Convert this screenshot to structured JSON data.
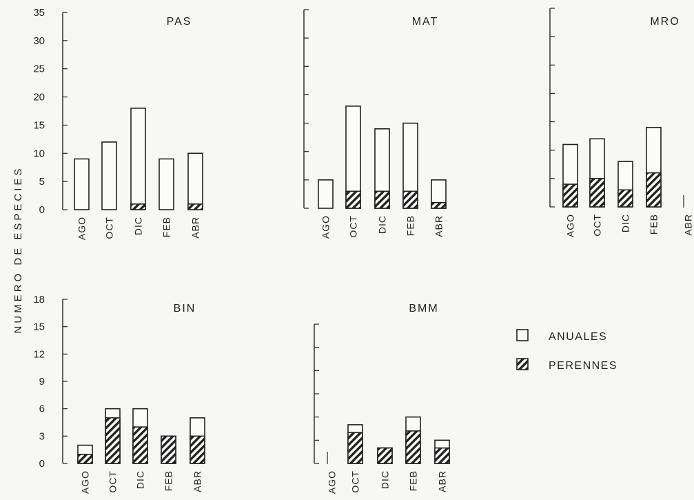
{
  "ylabel": "NUMERO DE ESPECIES",
  "legend": {
    "anuales": "ANUALES",
    "perennes": "PERENNES"
  },
  "chart_data": [
    {
      "type": "bar",
      "stacked": true,
      "title": "PAS",
      "categories": [
        "AGO",
        "OCT",
        "DIC",
        "FEB",
        "ABR"
      ],
      "series": [
        {
          "name": "PERENNES",
          "values": [
            0,
            0,
            1,
            0,
            1
          ]
        },
        {
          "name": "ANUALES",
          "values": [
            9,
            12,
            17,
            9,
            9
          ]
        }
      ],
      "totals": [
        9,
        12,
        18,
        9,
        10
      ],
      "yticks": [
        0,
        5,
        10,
        15,
        20,
        25,
        30,
        35
      ],
      "ylim": [
        0,
        35
      ]
    },
    {
      "type": "bar",
      "stacked": true,
      "title": "MAT",
      "categories": [
        "AGO",
        "OCT",
        "DIC",
        "FEB",
        "ABR"
      ],
      "series": [
        {
          "name": "PERENNES",
          "values": [
            0,
            3,
            3,
            3,
            1
          ]
        },
        {
          "name": "ANUALES",
          "values": [
            5,
            15,
            11,
            12,
            4
          ]
        }
      ],
      "totals": [
        5,
        18,
        14,
        15,
        5
      ],
      "yticks": [],
      "ylim": [
        0,
        35
      ]
    },
    {
      "type": "bar",
      "stacked": true,
      "title": "MRO",
      "categories": [
        "AGO",
        "OCT",
        "DIC",
        "FEB",
        "ABR"
      ],
      "series": [
        {
          "name": "PERENNES",
          "values": [
            4,
            5,
            3,
            6,
            0
          ]
        },
        {
          "name": "ANUALES",
          "values": [
            7,
            7,
            5,
            8,
            0
          ]
        }
      ],
      "totals": [
        11,
        12,
        8,
        14,
        0
      ],
      "yticks": [],
      "ylim": [
        0,
        35
      ]
    },
    {
      "type": "bar",
      "stacked": true,
      "title": "BIN",
      "categories": [
        "AGO",
        "OCT",
        "DIC",
        "FEB",
        "ABR"
      ],
      "series": [
        {
          "name": "PERENNES",
          "values": [
            1,
            5,
            4,
            3,
            3
          ]
        },
        {
          "name": "ANUALES",
          "values": [
            1,
            1,
            2,
            0,
            2
          ]
        }
      ],
      "totals": [
        2,
        6,
        6,
        3,
        5
      ],
      "yticks": [
        0,
        3,
        6,
        9,
        12,
        15,
        18
      ],
      "ylim": [
        0,
        18
      ]
    },
    {
      "type": "bar",
      "stacked": true,
      "title": "BMM",
      "categories": [
        "AGO",
        "OCT",
        "DIC",
        "FEB",
        "ABR"
      ],
      "series": [
        {
          "name": "PERENNES",
          "values": [
            0,
            4,
            2,
            4.2,
            2
          ]
        },
        {
          "name": "ANUALES",
          "values": [
            0,
            1,
            0,
            1.8,
            1
          ]
        }
      ],
      "totals": [
        0,
        5,
        2,
        6,
        3
      ],
      "yticks": [],
      "ylim": [
        0,
        18
      ]
    }
  ]
}
